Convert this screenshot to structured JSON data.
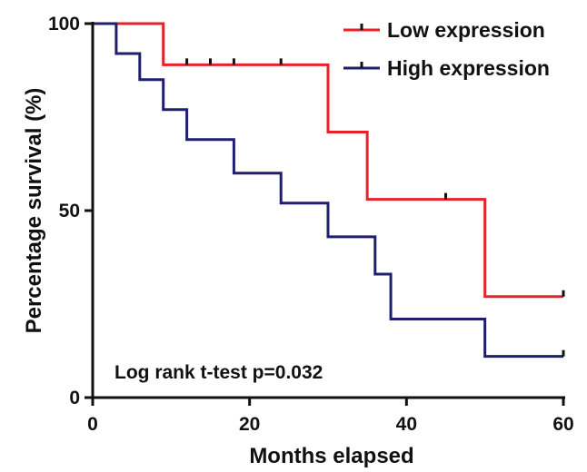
{
  "chart_data": {
    "type": "line",
    "subtype": "kaplan-meier step",
    "xlabel": "Months elapsed",
    "ylabel": "Percentage survival (%)",
    "xlim": [
      0,
      60
    ],
    "ylim": [
      0,
      100
    ],
    "xticks": [
      0,
      20,
      40,
      60
    ],
    "yticks": [
      0,
      50,
      100
    ],
    "grid": false,
    "legend_position": "top-right",
    "annotation": "Log rank t-test p=0.032",
    "series": [
      {
        "name": "Low expression",
        "color": "#e8212b",
        "steps": [
          [
            0,
            100
          ],
          [
            9,
            89
          ],
          [
            30,
            71
          ],
          [
            35,
            53
          ],
          [
            50,
            27
          ],
          [
            60,
            27
          ]
        ],
        "censored": [
          [
            12,
            89
          ],
          [
            15,
            89
          ],
          [
            18,
            89
          ],
          [
            24,
            89
          ],
          [
            45,
            53
          ],
          [
            60,
            27
          ]
        ]
      },
      {
        "name": "High expression",
        "color": "#1f1f6e",
        "steps": [
          [
            0,
            100
          ],
          [
            3,
            92
          ],
          [
            6,
            85
          ],
          [
            9,
            77
          ],
          [
            12,
            69
          ],
          [
            18,
            60
          ],
          [
            24,
            52
          ],
          [
            30,
            43
          ],
          [
            36,
            33
          ],
          [
            38,
            21
          ],
          [
            50,
            11
          ],
          [
            60,
            11
          ]
        ],
        "censored": [
          [
            60,
            11
          ]
        ]
      }
    ]
  }
}
